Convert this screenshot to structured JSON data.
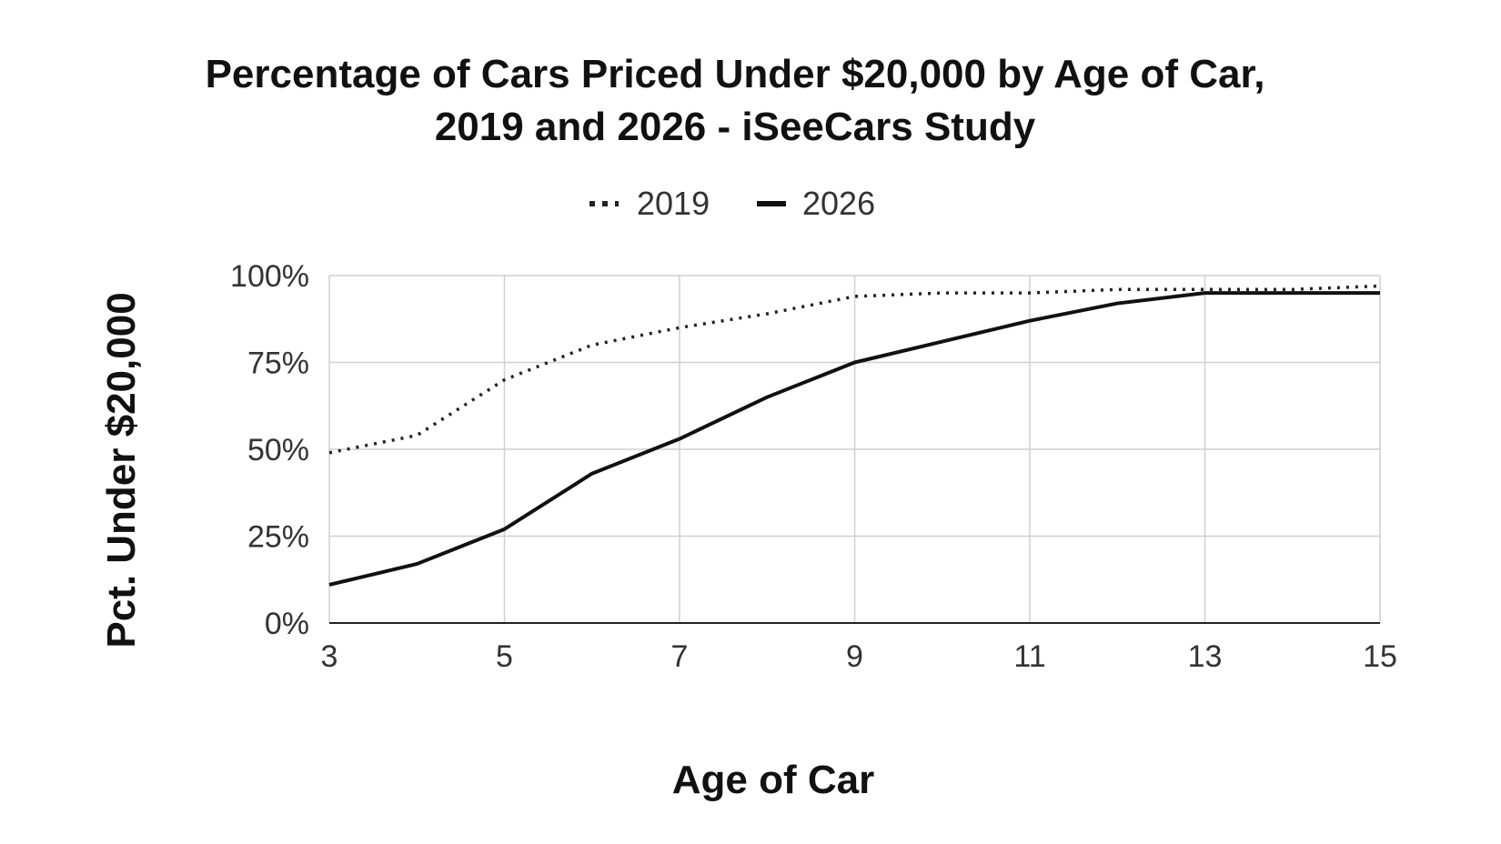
{
  "chart_data": {
    "type": "line",
    "title": [
      "Percentage of Cars Priced Under $20,000 by Age of Car,",
      "2019 and 2026 - iSeeCars Study"
    ],
    "xlabel": "Age of Car",
    "ylabel": "Pct. Under $20,000",
    "x": [
      3,
      4,
      5,
      6,
      7,
      8,
      9,
      10,
      11,
      12,
      13,
      14,
      15
    ],
    "xlim": [
      3,
      15
    ],
    "ylim": [
      0,
      100
    ],
    "x_ticks": [
      3,
      5,
      7,
      9,
      11,
      13,
      15
    ],
    "x_tick_labels": [
      "3",
      "5",
      "7",
      "9",
      "11",
      "13",
      "15"
    ],
    "y_ticks": [
      0,
      25,
      50,
      75,
      100
    ],
    "y_tick_labels": [
      "0%",
      "25%",
      "50%",
      "75%",
      "100%"
    ],
    "grid": true,
    "legend_position": "top-center",
    "series": [
      {
        "name": "2019",
        "style": "dotted",
        "color": "#222222",
        "values": [
          49,
          54,
          70,
          80,
          85,
          89,
          94,
          95,
          95,
          96,
          96,
          96,
          97
        ]
      },
      {
        "name": "2026",
        "style": "solid",
        "color": "#111111",
        "values": [
          11,
          17,
          27,
          43,
          53,
          65,
          75,
          81,
          87,
          92,
          95,
          95,
          95
        ]
      }
    ]
  }
}
